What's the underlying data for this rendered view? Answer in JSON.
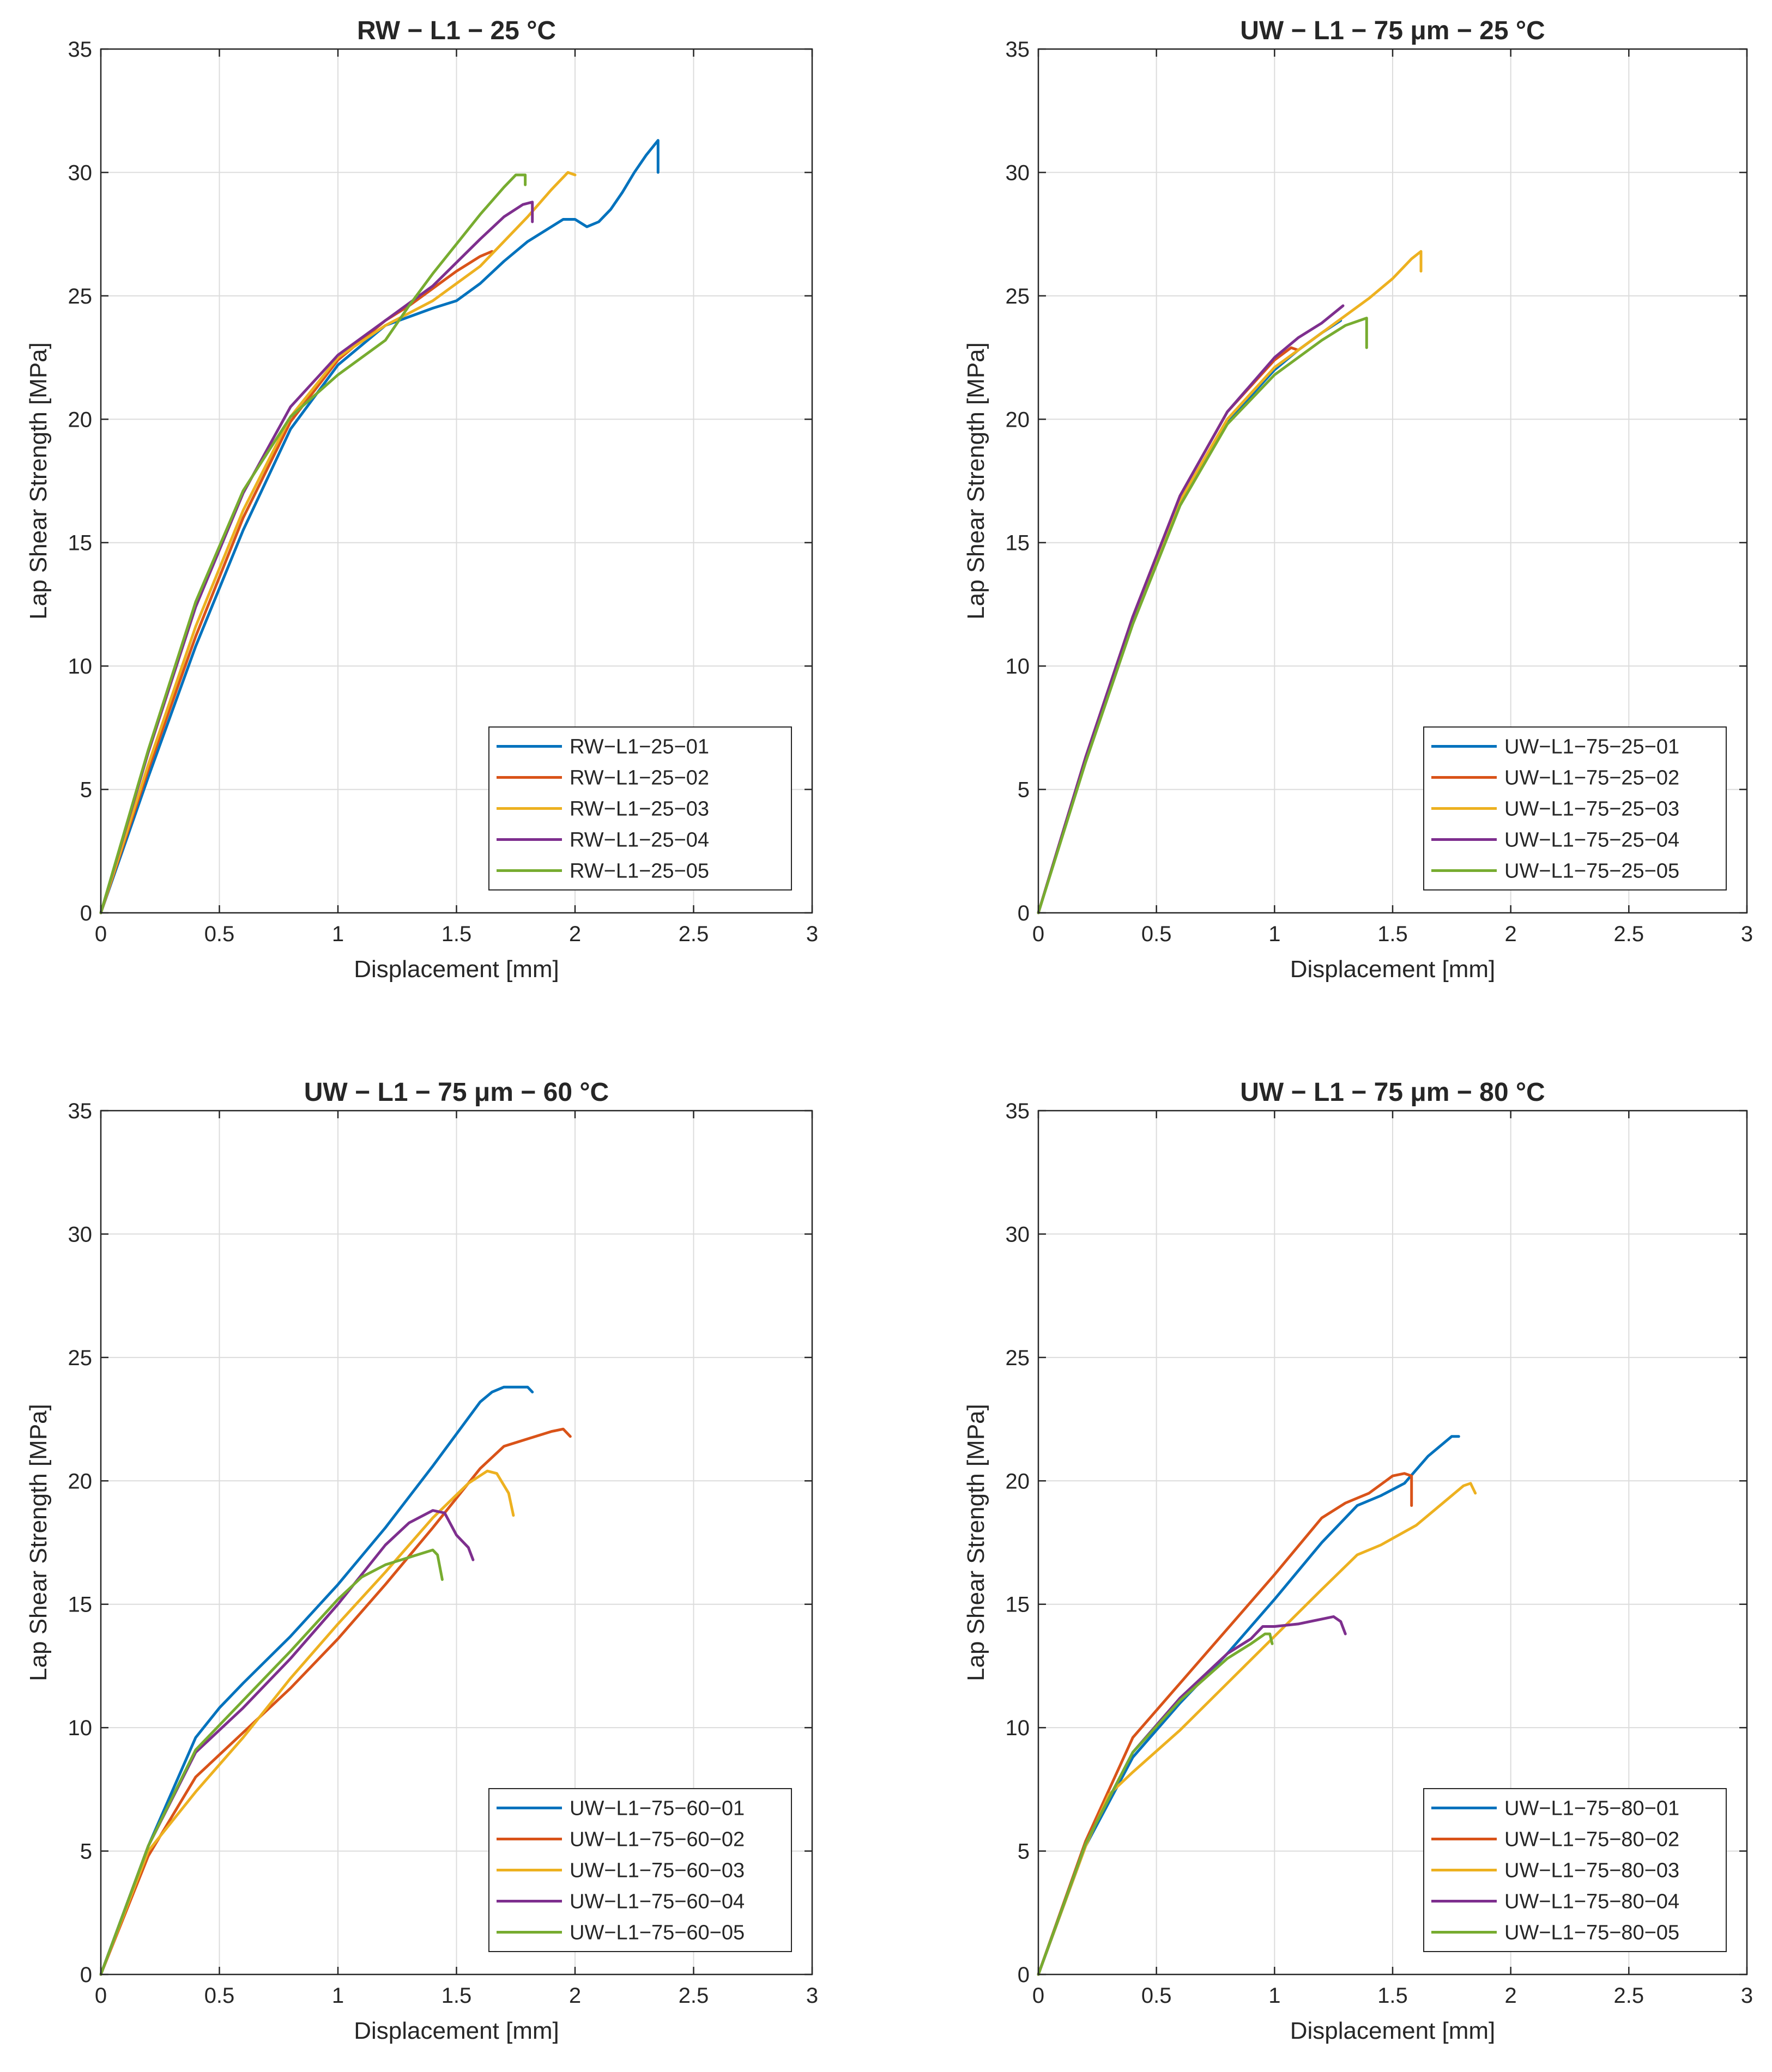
{
  "chart_data": [
    {
      "type": "line",
      "title": "RW − L1 − 25 °C",
      "xlabel": "Displacement [mm]",
      "ylabel": "Lap Shear Strength [MPa]",
      "xlim": [
        0,
        3
      ],
      "ylim": [
        0,
        35
      ],
      "xticks": [
        "0",
        "0.5",
        "1",
        "1.5",
        "2",
        "2.5",
        "3"
      ],
      "yticks": [
        "0",
        "5",
        "10",
        "15",
        "20",
        "25",
        "30",
        "35"
      ],
      "grid": true,
      "legend_position": "bottom-right",
      "series": [
        {
          "name": "RW−L1−25−01",
          "color": "#0072BD",
          "x": [
            0,
            0.2,
            0.4,
            0.6,
            0.8,
            1.0,
            1.2,
            1.4,
            1.5,
            1.6,
            1.7,
            1.8,
            1.9,
            1.95,
            2.0,
            2.05,
            2.1,
            2.15,
            2.2,
            2.25,
            2.3,
            2.35,
            2.35
          ],
          "y": [
            0,
            5.5,
            10.8,
            15.5,
            19.6,
            22.2,
            23.8,
            24.5,
            24.8,
            25.5,
            26.4,
            27.2,
            27.8,
            28.1,
            28.1,
            27.8,
            28.0,
            28.5,
            29.2,
            30.0,
            30.7,
            31.3,
            30.0
          ]
        },
        {
          "name": "RW−L1−25−02",
          "color": "#D95319",
          "x": [
            0,
            0.2,
            0.4,
            0.6,
            0.8,
            1.0,
            1.2,
            1.3,
            1.4,
            1.5,
            1.55,
            1.6,
            1.65
          ],
          "y": [
            0,
            5.8,
            11.2,
            16.0,
            19.9,
            22.4,
            24.0,
            24.6,
            25.3,
            26.0,
            26.3,
            26.6,
            26.8
          ]
        },
        {
          "name": "RW−L1−25−03",
          "color": "#EDB120",
          "x": [
            0,
            0.2,
            0.4,
            0.6,
            0.8,
            1.0,
            1.2,
            1.4,
            1.6,
            1.8,
            1.9,
            1.97,
            2.0
          ],
          "y": [
            0,
            6.0,
            11.6,
            16.3,
            20.1,
            22.5,
            23.8,
            24.8,
            26.2,
            28.2,
            29.3,
            30.0,
            29.9
          ]
        },
        {
          "name": "RW−L1−25−04",
          "color": "#7E2F8E",
          "x": [
            0,
            0.2,
            0.4,
            0.6,
            0.8,
            1.0,
            1.2,
            1.4,
            1.6,
            1.7,
            1.78,
            1.82,
            1.82
          ],
          "y": [
            0,
            6.5,
            12.4,
            17.0,
            20.5,
            22.6,
            24.0,
            25.4,
            27.3,
            28.2,
            28.7,
            28.8,
            28.0
          ]
        },
        {
          "name": "RW−L1−25−05",
          "color": "#77AC30",
          "x": [
            0,
            0.2,
            0.4,
            0.6,
            0.8,
            1.0,
            1.2,
            1.3,
            1.4,
            1.5,
            1.6,
            1.7,
            1.75,
            1.79,
            1.79
          ],
          "y": [
            0,
            6.6,
            12.6,
            17.1,
            20.1,
            21.8,
            23.2,
            24.6,
            25.9,
            27.1,
            28.3,
            29.4,
            29.9,
            29.9,
            29.5
          ]
        }
      ]
    },
    {
      "type": "line",
      "title": "UW − L1 − 75 μm − 25 °C",
      "xlabel": "Displacement [mm]",
      "ylabel": "Lap Shear Strength [MPa]",
      "xlim": [
        0,
        3
      ],
      "ylim": [
        0,
        35
      ],
      "xticks": [
        "0",
        "0.5",
        "1",
        "1.5",
        "2",
        "2.5",
        "3"
      ],
      "yticks": [
        "0",
        "5",
        "10",
        "15",
        "20",
        "25",
        "30",
        "35"
      ],
      "grid": true,
      "legend_position": "bottom-right",
      "series": [
        {
          "name": "UW−L1−75−25−01",
          "color": "#0072BD",
          "x": [
            0,
            0.2,
            0.4,
            0.6,
            0.8,
            1.0,
            1.1,
            1.2,
            1.28
          ],
          "y": [
            0,
            6.2,
            11.8,
            16.6,
            19.9,
            22.0,
            22.8,
            23.5,
            24.0
          ]
        },
        {
          "name": "UW−L1−75−25−02",
          "color": "#D95319",
          "x": [
            0,
            0.2,
            0.4,
            0.6,
            0.8,
            1.0,
            1.07,
            1.1
          ],
          "y": [
            0,
            6.3,
            12.0,
            16.9,
            20.3,
            22.4,
            22.9,
            22.8
          ]
        },
        {
          "name": "UW−L1−75−25−03",
          "color": "#EDB120",
          "x": [
            0,
            0.2,
            0.4,
            0.6,
            0.8,
            1.0,
            1.2,
            1.4,
            1.5,
            1.58,
            1.62,
            1.62
          ],
          "y": [
            0,
            6.2,
            11.8,
            16.7,
            20.0,
            22.1,
            23.5,
            24.9,
            25.7,
            26.5,
            26.8,
            26.0
          ]
        },
        {
          "name": "UW−L1−75−25−04",
          "color": "#7E2F8E",
          "x": [
            0,
            0.2,
            0.4,
            0.6,
            0.8,
            1.0,
            1.1,
            1.2,
            1.29
          ],
          "y": [
            0,
            6.3,
            12.0,
            16.9,
            20.3,
            22.5,
            23.3,
            23.9,
            24.6
          ]
        },
        {
          "name": "UW−L1−75−25−05",
          "color": "#77AC30",
          "x": [
            0,
            0.2,
            0.4,
            0.6,
            0.8,
            1.0,
            1.2,
            1.3,
            1.39,
            1.39
          ],
          "y": [
            0,
            6.1,
            11.7,
            16.5,
            19.8,
            21.8,
            23.2,
            23.8,
            24.1,
            22.9
          ]
        }
      ]
    },
    {
      "type": "line",
      "title": "UW − L1 − 75 μm − 60 °C",
      "xlabel": "Displacement [mm]",
      "ylabel": "Lap Shear Strength [MPa]",
      "xlim": [
        0,
        3
      ],
      "ylim": [
        0,
        35
      ],
      "xticks": [
        "0",
        "0.5",
        "1",
        "1.5",
        "2",
        "2.5",
        "3"
      ],
      "yticks": [
        "0",
        "5",
        "10",
        "15",
        "20",
        "25",
        "30",
        "35"
      ],
      "grid": true,
      "legend_position": "bottom-right",
      "series": [
        {
          "name": "UW−L1−75−60−01",
          "color": "#0072BD",
          "x": [
            0,
            0.2,
            0.4,
            0.5,
            0.6,
            0.8,
            1.0,
            1.2,
            1.4,
            1.6,
            1.65,
            1.7,
            1.8,
            1.82
          ],
          "y": [
            0,
            5.2,
            9.6,
            10.8,
            11.8,
            13.7,
            15.8,
            18.1,
            20.6,
            23.2,
            23.6,
            23.8,
            23.8,
            23.6
          ]
        },
        {
          "name": "UW−L1−75−60−02",
          "color": "#D95319",
          "x": [
            0,
            0.2,
            0.4,
            0.6,
            0.8,
            1.0,
            1.2,
            1.4,
            1.6,
            1.7,
            1.8,
            1.9,
            1.95,
            1.98
          ],
          "y": [
            0,
            4.8,
            8.0,
            9.8,
            11.6,
            13.6,
            15.8,
            18.1,
            20.5,
            21.4,
            21.7,
            22.0,
            22.1,
            21.8
          ]
        },
        {
          "name": "UW−L1−75−60−03",
          "color": "#EDB120",
          "x": [
            0,
            0.2,
            0.4,
            0.6,
            0.8,
            1.0,
            1.2,
            1.4,
            1.55,
            1.63,
            1.67,
            1.72,
            1.74
          ],
          "y": [
            0,
            5.0,
            7.4,
            9.6,
            12.0,
            14.2,
            16.3,
            18.5,
            19.9,
            20.4,
            20.3,
            19.5,
            18.6
          ]
        },
        {
          "name": "UW−L1−75−60−04",
          "color": "#7E2F8E",
          "x": [
            0,
            0.2,
            0.4,
            0.6,
            0.8,
            1.0,
            1.2,
            1.3,
            1.4,
            1.45,
            1.5,
            1.55,
            1.57
          ],
          "y": [
            0,
            5.2,
            9.0,
            10.8,
            12.8,
            15.0,
            17.4,
            18.3,
            18.8,
            18.7,
            17.8,
            17.3,
            16.8
          ]
        },
        {
          "name": "UW−L1−75−60−05",
          "color": "#77AC30",
          "x": [
            0,
            0.2,
            0.4,
            0.6,
            0.8,
            1.0,
            1.1,
            1.2,
            1.3,
            1.4,
            1.42,
            1.44
          ],
          "y": [
            0,
            5.2,
            9.1,
            11.1,
            13.1,
            15.2,
            16.1,
            16.6,
            16.9,
            17.2,
            17.0,
            16.0
          ]
        }
      ]
    },
    {
      "type": "line",
      "title": "UW − L1 − 75 μm − 80 °C",
      "xlabel": "Displacement [mm]",
      "ylabel": "Lap Shear Strength [MPa]",
      "xlim": [
        0,
        3
      ],
      "ylim": [
        0,
        35
      ],
      "xticks": [
        "0",
        "0.5",
        "1",
        "1.5",
        "2",
        "2.5",
        "3"
      ],
      "yticks": [
        "0",
        "5",
        "10",
        "15",
        "20",
        "25",
        "30",
        "35"
      ],
      "grid": true,
      "legend_position": "bottom-right",
      "series": [
        {
          "name": "UW−L1−75−80−01",
          "color": "#0072BD",
          "x": [
            0,
            0.2,
            0.4,
            0.6,
            0.8,
            1.0,
            1.2,
            1.35,
            1.45,
            1.55,
            1.65,
            1.75,
            1.78
          ],
          "y": [
            0,
            5.2,
            8.8,
            11.0,
            13.0,
            15.2,
            17.5,
            19.0,
            19.4,
            19.9,
            21.0,
            21.8,
            21.8
          ]
        },
        {
          "name": "UW−L1−75−80−02",
          "color": "#D95319",
          "x": [
            0,
            0.2,
            0.4,
            0.6,
            0.8,
            1.0,
            1.2,
            1.3,
            1.4,
            1.5,
            1.55,
            1.58,
            1.58
          ],
          "y": [
            0,
            5.4,
            9.6,
            11.8,
            14.0,
            16.2,
            18.5,
            19.1,
            19.5,
            20.2,
            20.3,
            20.2,
            19.0
          ]
        },
        {
          "name": "UW−L1−75−80−03",
          "color": "#EDB120",
          "x": [
            0,
            0.2,
            0.3,
            0.4,
            0.6,
            0.8,
            1.0,
            1.2,
            1.35,
            1.45,
            1.6,
            1.7,
            1.8,
            1.83,
            1.85
          ],
          "y": [
            0,
            5.2,
            7.3,
            8.2,
            9.9,
            11.8,
            13.7,
            15.6,
            17.0,
            17.4,
            18.2,
            19.0,
            19.8,
            19.9,
            19.5
          ]
        },
        {
          "name": "UW−L1−75−80−04",
          "color": "#7E2F8E",
          "x": [
            0,
            0.2,
            0.4,
            0.6,
            0.8,
            0.9,
            0.95,
            1.0,
            1.1,
            1.2,
            1.25,
            1.28,
            1.3
          ],
          "y": [
            0,
            5.3,
            9.0,
            11.2,
            13.0,
            13.6,
            14.1,
            14.1,
            14.2,
            14.4,
            14.5,
            14.3,
            13.8
          ]
        },
        {
          "name": "UW−L1−75−80−05",
          "color": "#77AC30",
          "x": [
            0,
            0.2,
            0.4,
            0.6,
            0.8,
            0.9,
            0.96,
            0.98,
            0.99
          ],
          "y": [
            0,
            5.3,
            9.0,
            11.1,
            12.8,
            13.4,
            13.8,
            13.8,
            13.4
          ]
        }
      ]
    }
  ]
}
